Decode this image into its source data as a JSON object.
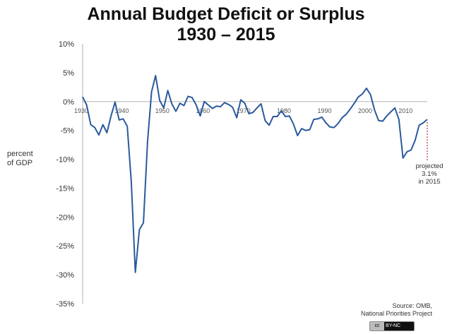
{
  "chart_data": {
    "type": "line",
    "title": "Annual Budget Deficit or Surplus",
    "subtitle": "1930 – 2015",
    "xlabel": "",
    "ylabel": "percent of GDP",
    "xlim": [
      1930,
      2015
    ],
    "ylim": [
      -35,
      10
    ],
    "x_ticks": [
      "1930",
      "1940",
      "1950",
      "1960",
      "1970",
      "1980",
      "1990",
      "2000",
      "2010"
    ],
    "y_ticks": [
      "10%",
      "5%",
      "0%",
      "-5%",
      "-10%",
      "-15%",
      "-20%",
      "-25%",
      "-30%",
      "-35%"
    ],
    "grid": false,
    "line_color": "#2a5a9c",
    "x": [
      1930,
      1931,
      1932,
      1933,
      1934,
      1935,
      1936,
      1937,
      1938,
      1939,
      1940,
      1941,
      1942,
      1943,
      1944,
      1945,
      1946,
      1947,
      1948,
      1949,
      1950,
      1951,
      1952,
      1953,
      1954,
      1955,
      1956,
      1957,
      1958,
      1959,
      1960,
      1961,
      1962,
      1963,
      1964,
      1965,
      1966,
      1967,
      1968,
      1969,
      1970,
      1971,
      1972,
      1973,
      1974,
      1975,
      1976,
      1977,
      1978,
      1979,
      1980,
      1981,
      1982,
      1983,
      1984,
      1985,
      1986,
      1987,
      1988,
      1989,
      1990,
      1991,
      1992,
      1993,
      1994,
      1995,
      1996,
      1997,
      1998,
      1999,
      2000,
      2001,
      2002,
      2003,
      2004,
      2005,
      2006,
      2007,
      2008,
      2009,
      2010,
      2011,
      2012,
      2013,
      2014,
      2015
    ],
    "y": [
      0.8,
      -0.6,
      -4.0,
      -4.5,
      -5.8,
      -4.0,
      -5.4,
      -2.5,
      -0.1,
      -3.2,
      -3.0,
      -4.3,
      -13.9,
      -29.6,
      -22.2,
      -21.0,
      -7.0,
      1.7,
      4.5,
      0.2,
      -1.1,
      1.9,
      -0.4,
      -1.7,
      -0.3,
      -0.7,
      0.9,
      0.7,
      -0.6,
      -2.5,
      0.0,
      -0.6,
      -1.2,
      -0.8,
      -0.9,
      -0.2,
      -0.5,
      -1.0,
      -2.8,
      0.3,
      -0.3,
      -2.1,
      -1.9,
      -1.1,
      -0.4,
      -3.3,
      -4.1,
      -2.6,
      -2.6,
      -1.6,
      -2.6,
      -2.5,
      -3.9,
      -5.9,
      -4.7,
      -5.0,
      -4.9,
      -3.1,
      -3.0,
      -2.7,
      -3.7,
      -4.4,
      -4.5,
      -3.8,
      -2.8,
      -2.2,
      -1.3,
      -0.3,
      0.8,
      1.3,
      2.3,
      1.2,
      -1.5,
      -3.3,
      -3.4,
      -2.5,
      -1.8,
      -1.1,
      -3.1,
      -9.8,
      -8.7,
      -8.4,
      -6.7,
      -4.1,
      -3.7,
      -3.1
    ],
    "annotation": {
      "lines": [
        "projected",
        "3.1%",
        "in 2015"
      ],
      "color": "#b03030"
    }
  },
  "ylabel_lines": [
    "percent",
    "of GDP"
  ],
  "source": {
    "line1": "Source: OMB,",
    "line2": "National Priorities Project"
  },
  "license_badge": {
    "left": "cc",
    "right": "BY-NC"
  }
}
